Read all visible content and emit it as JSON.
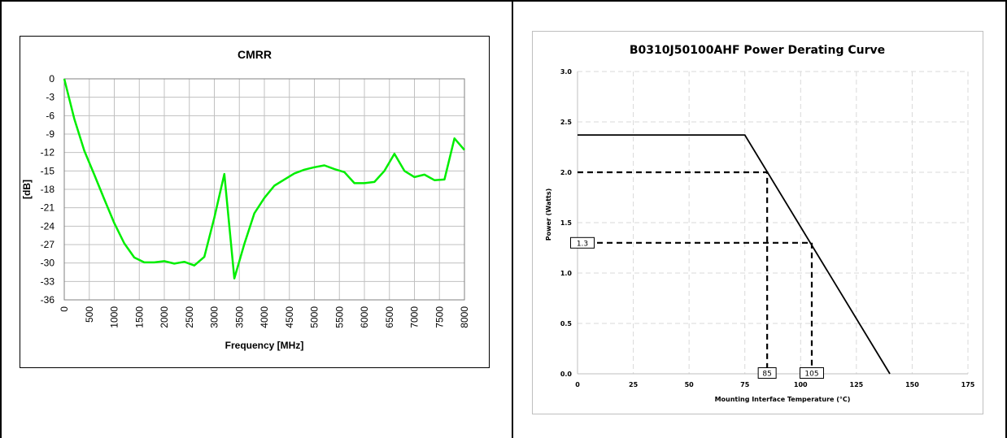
{
  "chart_data": [
    {
      "type": "line",
      "title": "CMRR",
      "xlabel": "Frequency [MHz]",
      "ylabel": "[dB]",
      "xlim": [
        0,
        8000
      ],
      "ylim": [
        -36,
        0
      ],
      "x_ticks": [
        "0",
        "500",
        "1000",
        "1500",
        "2000",
        "2500",
        "3000",
        "3500",
        "4000",
        "4500",
        "5000",
        "5500",
        "6000",
        "6500",
        "7000",
        "7500",
        "8000"
      ],
      "y_ticks": [
        "0",
        "-3",
        "-6",
        "-9",
        "-12",
        "-15",
        "-18",
        "-21",
        "-24",
        "-27",
        "-30",
        "-33",
        "-36"
      ],
      "grid": true,
      "series": [
        {
          "color": "#00ee00",
          "x": [
            0,
            200,
            400,
            600,
            800,
            1000,
            1200,
            1400,
            1600,
            1800,
            2000,
            2200,
            2400,
            2600,
            2800,
            3000,
            3200,
            3400,
            3600,
            3800,
            4000,
            4200,
            4400,
            4600,
            4800,
            5000,
            5200,
            5400,
            5600,
            5800,
            6000,
            6200,
            6400,
            6600,
            6800,
            7000,
            7200,
            7400,
            7600,
            7800,
            8000
          ],
          "y": [
            0,
            -6.5,
            -11.7,
            -15.6,
            -19.6,
            -23.5,
            -26.8,
            -29.1,
            -29.9,
            -29.9,
            -29.7,
            -30.1,
            -29.8,
            -30.4,
            -29.0,
            -22.6,
            -15.5,
            -32.5,
            -26.9,
            -21.9,
            -19.4,
            -17.4,
            -16.4,
            -15.4,
            -14.8,
            -14.4,
            -14.1,
            -14.7,
            -15.2,
            -17.0,
            -17.0,
            -16.8,
            -15.0,
            -12.2,
            -15.0,
            -16.0,
            -15.6,
            -16.5,
            -16.4,
            -9.7,
            -11.6
          ]
        }
      ]
    },
    {
      "type": "line",
      "title": "B0310J50100AHF Power Derating Curve",
      "xlabel": "Mounting Interface Temperature (°C)",
      "ylabel": "Power (Watts)",
      "xlim": [
        0,
        175
      ],
      "ylim": [
        0,
        3.0
      ],
      "x_ticks": [
        "0",
        "25",
        "50",
        "75",
        "100",
        "125",
        "150",
        "175"
      ],
      "y_ticks": [
        "0.0",
        "0.5",
        "1.0",
        "1.5",
        "2.0",
        "2.5",
        "3.0"
      ],
      "grid": true,
      "series": [
        {
          "color": "#000000",
          "x": [
            0,
            75,
            140
          ],
          "y": [
            2.37,
            2.37,
            0
          ]
        }
      ],
      "annotations": [
        {
          "x": 85,
          "y": 2.0,
          "label": "85"
        },
        {
          "x": 105,
          "y": 1.3,
          "x_label": "105",
          "y_label": "1.3"
        }
      ]
    }
  ]
}
